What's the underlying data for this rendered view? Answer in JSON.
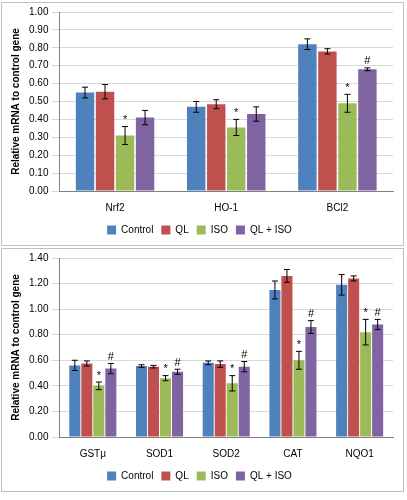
{
  "chart_data": [
    {
      "type": "bar",
      "y_label": "Relative mRNA to control gene",
      "categories": [
        "Nrf2",
        "HO-1",
        "BCl2"
      ],
      "series": [
        {
          "name": "Control",
          "color": "#4f81bd",
          "values": [
            0.55,
            0.47,
            0.82
          ],
          "errors": [
            0.03,
            0.03,
            0.03
          ],
          "annotations": [
            null,
            null,
            null
          ]
        },
        {
          "name": "QL",
          "color": "#c0504d",
          "values": [
            0.555,
            0.485,
            0.78
          ],
          "errors": [
            0.04,
            0.025,
            0.015
          ],
          "annotations": [
            null,
            null,
            null
          ]
        },
        {
          "name": "ISO",
          "color": "#9bbb59",
          "values": [
            0.31,
            0.355,
            0.49
          ],
          "errors": [
            0.05,
            0.045,
            0.05
          ],
          "annotations": [
            "*",
            "*",
            "*"
          ]
        },
        {
          "name": "QL + ISO",
          "color": "#8064a2",
          "values": [
            0.41,
            0.43,
            0.68
          ],
          "errors": [
            0.04,
            0.04,
            0.008
          ],
          "annotations": [
            null,
            null,
            "#"
          ]
        }
      ],
      "ylim": [
        0,
        1
      ],
      "yticks": [
        {
          "value": 0,
          "label": "0.00"
        },
        {
          "value": 0.1,
          "label": "0.10"
        },
        {
          "value": 0.2,
          "label": "0.20"
        },
        {
          "value": 0.3,
          "label": "0.30"
        },
        {
          "value": 0.4,
          "label": "0.40"
        },
        {
          "value": 0.5,
          "label": "0.50"
        },
        {
          "value": 0.6,
          "label": "0.60"
        },
        {
          "value": 0.7,
          "label": "0.70"
        },
        {
          "value": 0.8,
          "label": "0.80"
        },
        {
          "value": 0.9,
          "label": "0.90"
        },
        {
          "value": 1,
          "label": "1.00"
        }
      ],
      "grid": true,
      "legend": "bottom"
    },
    {
      "type": "bar",
      "y_label": "Relative mRNA to control gene",
      "categories": [
        "GSTμ",
        "SOD1",
        "SOD2",
        "CAT",
        "NQO1"
      ],
      "series": [
        {
          "name": "Control",
          "color": "#4f81bd",
          "values": [
            0.56,
            0.555,
            0.58,
            1.15,
            1.19
          ],
          "errors": [
            0.04,
            0.01,
            0.015,
            0.07,
            0.08
          ],
          "annotations": [
            null,
            null,
            null,
            null,
            null
          ]
        },
        {
          "name": "QL",
          "color": "#c0504d",
          "values": [
            0.575,
            0.55,
            0.57,
            1.26,
            1.24
          ],
          "errors": [
            0.02,
            0.01,
            0.025,
            0.05,
            0.02
          ],
          "annotations": [
            null,
            null,
            null,
            null,
            null
          ]
        },
        {
          "name": "ISO",
          "color": "#9bbb59",
          "values": [
            0.4,
            0.46,
            0.42,
            0.6,
            0.82
          ],
          "errors": [
            0.03,
            0.02,
            0.06,
            0.07,
            0.1
          ],
          "annotations": [
            "*",
            "*",
            "*",
            "*",
            "*"
          ]
        },
        {
          "name": "QL + ISO",
          "color": "#8064a2",
          "values": [
            0.535,
            0.51,
            0.55,
            0.86,
            0.88
          ],
          "errors": [
            0.04,
            0.02,
            0.04,
            0.05,
            0.04
          ],
          "annotations": [
            "#",
            "#",
            "#",
            "#",
            "#"
          ]
        }
      ],
      "ylim": [
        0,
        1.4
      ],
      "yticks": [
        {
          "value": 0,
          "label": "0.00"
        },
        {
          "value": 0.2,
          "label": "0.20"
        },
        {
          "value": 0.4,
          "label": "0.40"
        },
        {
          "value": 0.6,
          "label": "0.60"
        },
        {
          "value": 0.8,
          "label": "0.80"
        },
        {
          "value": 1,
          "label": "1.00"
        },
        {
          "value": 1.2,
          "label": "1.20"
        },
        {
          "value": 1.4,
          "label": "1.40"
        }
      ],
      "grid": true,
      "legend": "bottom"
    }
  ]
}
